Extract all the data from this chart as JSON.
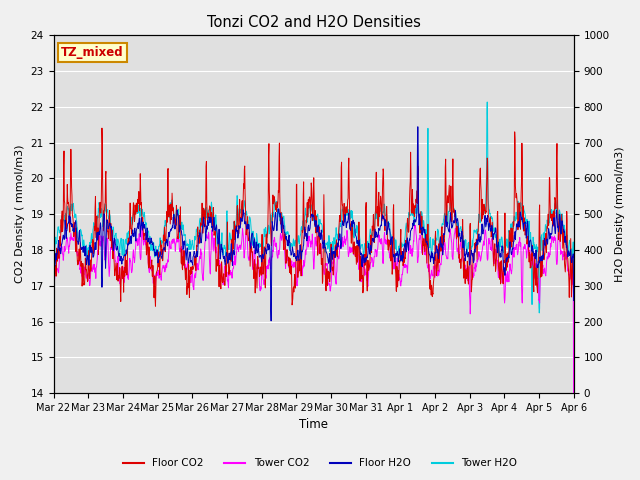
{
  "title": "Tonzi CO2 and H2O Densities",
  "xlabel": "Time",
  "ylabel_left": "CO2 Density ( mmol/m3)",
  "ylabel_right": "H2O Density (mmol/m3)",
  "annotation_text": "TZ_mixed",
  "annotation_color": "#cc0000",
  "annotation_bg": "#ffffcc",
  "annotation_border": "#cc8800",
  "ylim_left": [
    14.0,
    24.0
  ],
  "ylim_right": [
    0,
    1000
  ],
  "yticks_left": [
    14.0,
    15.0,
    16.0,
    17.0,
    18.0,
    19.0,
    20.0,
    21.0,
    22.0,
    23.0,
    24.0
  ],
  "yticks_right": [
    0,
    100,
    200,
    300,
    400,
    500,
    600,
    700,
    800,
    900,
    1000
  ],
  "x_tick_labels": [
    "Mar 22",
    "Mar 23",
    "Mar 24",
    "Mar 25",
    "Mar 26",
    "Mar 27",
    "Mar 28",
    "Mar 29",
    "Mar 30",
    "Mar 31",
    "Apr 1",
    "Apr 2",
    "Apr 3",
    "Apr 4",
    "Apr 5",
    "Apr 6"
  ],
  "colors": {
    "floor_co2": "#dd0000",
    "tower_co2": "#ff00ff",
    "floor_h2o": "#0000bb",
    "tower_h2o": "#00ccdd"
  },
  "legend_labels": [
    "Floor CO2",
    "Tower CO2",
    "Floor H2O",
    "Tower H2O"
  ],
  "plot_bg_color": "#e0e0e0",
  "fig_bg_color": "#f0f0f0",
  "grid_color": "#ffffff",
  "n_days": 15,
  "pts_per_day": 96,
  "seed": 7
}
